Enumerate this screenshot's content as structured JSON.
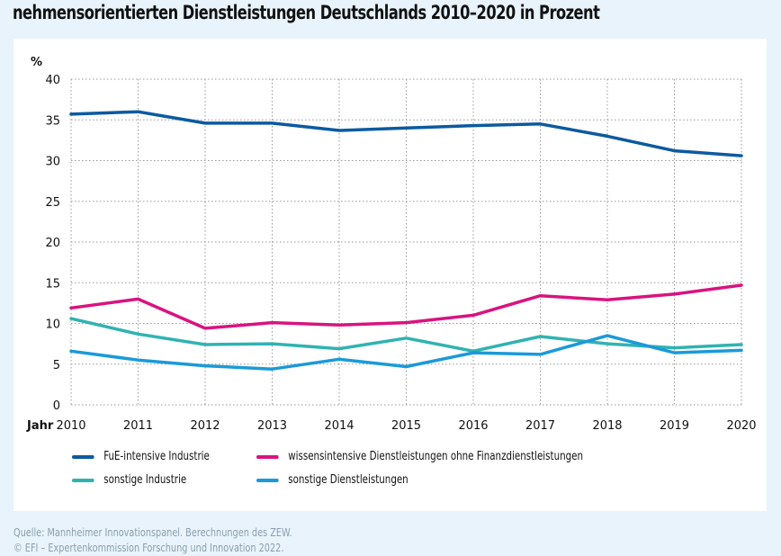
{
  "title": "nehmensorientierten Dienstleistungen Deutschlands 2010–2020 in Prozent",
  "footer": {
    "source": "Quelle: Mannheimer Innovationspanel. Berechnungen des ZEW.",
    "copyright": "© EFI – Expertenkommission Forschung und Innovation 2022."
  },
  "chart_data": {
    "type": "line",
    "title": "nehmensorientierten Dienstleistungen Deutschlands 2010–2020 in Prozent",
    "xlabel": "Jahr",
    "ylabel": "%",
    "x": [
      "2010",
      "2011",
      "2012",
      "2013",
      "2014",
      "2015",
      "2016",
      "2017",
      "2018",
      "2019",
      "2020"
    ],
    "ylim": [
      0,
      40
    ],
    "yticks": [
      "0",
      "5",
      "10",
      "15",
      "20",
      "25",
      "30",
      "35",
      "40"
    ],
    "grid": true,
    "legend_position": "bottom",
    "series": [
      {
        "name": "FuE-intensive Industrie",
        "color": "#0b5aa0",
        "values": [
          35.7,
          36.0,
          34.6,
          34.6,
          33.7,
          34.0,
          34.3,
          34.5,
          33.0,
          31.2,
          30.6
        ]
      },
      {
        "name": "wissensintensive Dienstleistungen ohne Finanzdienstleistungen",
        "color": "#d9137f",
        "values": [
          11.9,
          13.0,
          9.4,
          10.1,
          9.8,
          10.1,
          11.0,
          13.4,
          12.9,
          13.6,
          14.7
        ]
      },
      {
        "name": "sonstige Industrie",
        "color": "#2fb3b1",
        "values": [
          10.6,
          8.7,
          7.4,
          7.5,
          6.9,
          8.2,
          6.6,
          8.4,
          7.5,
          7.0,
          7.4
        ]
      },
      {
        "name": "sonstige Dienstleistungen",
        "color": "#1a9ad9",
        "values": [
          6.6,
          5.5,
          4.8,
          4.4,
          5.6,
          4.7,
          6.4,
          6.2,
          8.5,
          6.4,
          6.7
        ]
      }
    ]
  }
}
